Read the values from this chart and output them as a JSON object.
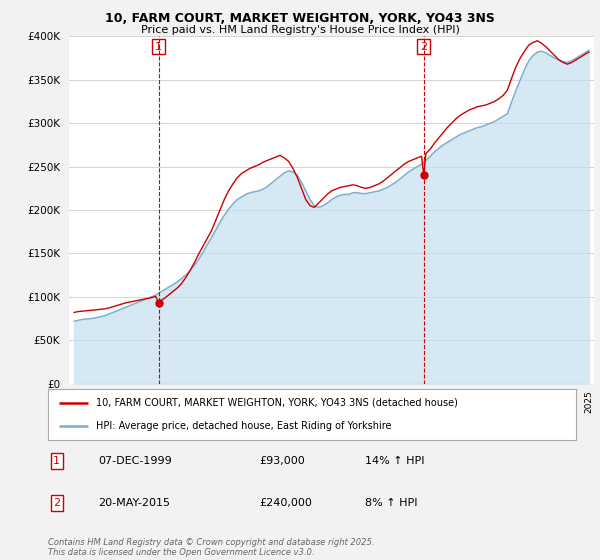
{
  "title": "10, FARM COURT, MARKET WEIGHTON, YORK, YO43 3NS",
  "subtitle": "Price paid vs. HM Land Registry's House Price Index (HPI)",
  "red_label": "10, FARM COURT, MARKET WEIGHTON, YORK, YO43 3NS (detached house)",
  "blue_label": "HPI: Average price, detached house, East Riding of Yorkshire",
  "transaction1": {
    "num": "1",
    "date": "07-DEC-1999",
    "price": 93000,
    "hpi": "14% ↑ HPI"
  },
  "transaction2": {
    "num": "2",
    "date": "20-MAY-2015",
    "price": 240000,
    "hpi": "8% ↑ HPI"
  },
  "vline1_year": 1999.92,
  "vline2_year": 2015.38,
  "footer": "Contains HM Land Registry data © Crown copyright and database right 2025.\nThis data is licensed under the Open Government Licence v3.0.",
  "ylim": [
    0,
    400000
  ],
  "yticks": [
    0,
    50000,
    100000,
    150000,
    200000,
    250000,
    300000,
    350000,
    400000
  ],
  "xlim_left": 1994.7,
  "xlim_right": 2025.3,
  "background_color": "#f2f2f2",
  "plot_background": "#ffffff",
  "grid_color": "#cccccc",
  "red_color": "#cc0000",
  "blue_color": "#7aadcc",
  "blue_fill_color": "#c5dff0",
  "hpi_years": [
    1995.0,
    1995.25,
    1995.5,
    1995.75,
    1996.0,
    1996.25,
    1996.5,
    1996.75,
    1997.0,
    1997.25,
    1997.5,
    1997.75,
    1998.0,
    1998.25,
    1998.5,
    1998.75,
    1999.0,
    1999.25,
    1999.5,
    1999.75,
    2000.0,
    2000.25,
    2000.5,
    2000.75,
    2001.0,
    2001.25,
    2001.5,
    2001.75,
    2002.0,
    2002.25,
    2002.5,
    2002.75,
    2003.0,
    2003.25,
    2003.5,
    2003.75,
    2004.0,
    2004.25,
    2004.5,
    2004.75,
    2005.0,
    2005.25,
    2005.5,
    2005.75,
    2006.0,
    2006.25,
    2006.5,
    2006.75,
    2007.0,
    2007.25,
    2007.5,
    2007.75,
    2008.0,
    2008.25,
    2008.5,
    2008.75,
    2009.0,
    2009.25,
    2009.5,
    2009.75,
    2010.0,
    2010.25,
    2010.5,
    2010.75,
    2011.0,
    2011.25,
    2011.5,
    2011.75,
    2012.0,
    2012.25,
    2012.5,
    2012.75,
    2013.0,
    2013.25,
    2013.5,
    2013.75,
    2014.0,
    2014.25,
    2014.5,
    2014.75,
    2015.0,
    2015.25,
    2015.5,
    2015.75,
    2016.0,
    2016.25,
    2016.5,
    2016.75,
    2017.0,
    2017.25,
    2017.5,
    2017.75,
    2018.0,
    2018.25,
    2018.5,
    2018.75,
    2019.0,
    2019.25,
    2019.5,
    2019.75,
    2020.0,
    2020.25,
    2020.5,
    2020.75,
    2021.0,
    2021.25,
    2021.5,
    2021.75,
    2022.0,
    2022.25,
    2022.5,
    2022.75,
    2023.0,
    2023.25,
    2023.5,
    2023.75,
    2024.0,
    2024.25,
    2024.5,
    2024.75,
    2025.0
  ],
  "hpi_values": [
    72000,
    73000,
    74000,
    74500,
    75000,
    76000,
    77000,
    78000,
    80000,
    82000,
    84000,
    86000,
    88000,
    90000,
    92000,
    94000,
    96000,
    98000,
    100000,
    102000,
    105000,
    108000,
    111000,
    114000,
    117000,
    121000,
    125000,
    130000,
    136000,
    143000,
    151000,
    160000,
    168000,
    177000,
    186000,
    194000,
    201000,
    207000,
    212000,
    215000,
    218000,
    220000,
    221000,
    222000,
    224000,
    227000,
    231000,
    235000,
    239000,
    243000,
    245000,
    244000,
    240000,
    232000,
    222000,
    212000,
    205000,
    203000,
    205000,
    208000,
    212000,
    215000,
    217000,
    218000,
    218000,
    220000,
    220000,
    219000,
    219000,
    220000,
    221000,
    222000,
    224000,
    226000,
    229000,
    232000,
    236000,
    240000,
    244000,
    247000,
    250000,
    253000,
    257000,
    262000,
    267000,
    271000,
    275000,
    278000,
    281000,
    284000,
    287000,
    289000,
    291000,
    293000,
    295000,
    296000,
    298000,
    300000,
    302000,
    305000,
    308000,
    311000,
    325000,
    338000,
    350000,
    362000,
    372000,
    378000,
    382000,
    383000,
    381000,
    378000,
    375000,
    373000,
    371000,
    370000,
    372000,
    375000,
    378000,
    381000,
    384000
  ],
  "red_years": [
    1995.0,
    1995.25,
    1995.5,
    1995.75,
    1996.0,
    1996.25,
    1996.5,
    1996.75,
    1997.0,
    1997.25,
    1997.5,
    1997.75,
    1998.0,
    1998.25,
    1998.5,
    1998.75,
    1999.0,
    1999.25,
    1999.5,
    1999.75,
    1999.92,
    2000.0,
    2000.25,
    2000.5,
    2000.75,
    2001.0,
    2001.25,
    2001.5,
    2001.75,
    2002.0,
    2002.25,
    2002.5,
    2002.75,
    2003.0,
    2003.25,
    2003.5,
    2003.75,
    2004.0,
    2004.25,
    2004.5,
    2004.75,
    2005.0,
    2005.25,
    2005.5,
    2005.75,
    2006.0,
    2006.25,
    2006.5,
    2006.75,
    2007.0,
    2007.25,
    2007.5,
    2007.75,
    2008.0,
    2008.25,
    2008.5,
    2008.75,
    2009.0,
    2009.25,
    2009.5,
    2009.75,
    2010.0,
    2010.25,
    2010.5,
    2010.75,
    2011.0,
    2011.25,
    2011.5,
    2011.75,
    2012.0,
    2012.25,
    2012.5,
    2012.75,
    2013.0,
    2013.25,
    2013.5,
    2013.75,
    2014.0,
    2014.25,
    2014.5,
    2014.75,
    2015.0,
    2015.25,
    2015.38,
    2015.5,
    2015.75,
    2016.0,
    2016.25,
    2016.5,
    2016.75,
    2017.0,
    2017.25,
    2017.5,
    2017.75,
    2018.0,
    2018.25,
    2018.5,
    2018.75,
    2019.0,
    2019.25,
    2019.5,
    2019.75,
    2020.0,
    2020.25,
    2020.5,
    2020.75,
    2021.0,
    2021.25,
    2021.5,
    2021.75,
    2022.0,
    2022.25,
    2022.5,
    2022.75,
    2023.0,
    2023.25,
    2023.5,
    2023.75,
    2024.0,
    2024.25,
    2024.5,
    2024.75,
    2025.0
  ],
  "red_values": [
    82000,
    83000,
    83500,
    84000,
    84500,
    85000,
    85500,
    86000,
    87000,
    88500,
    90000,
    91500,
    93000,
    94000,
    95000,
    96000,
    97000,
    98000,
    99000,
    100500,
    93000,
    95000,
    98000,
    102000,
    106000,
    110000,
    115000,
    122000,
    130000,
    139000,
    149000,
    158000,
    167000,
    176000,
    188000,
    200000,
    212000,
    222000,
    230000,
    237000,
    242000,
    245000,
    248000,
    250000,
    252000,
    255000,
    257000,
    259000,
    261000,
    263000,
    260000,
    256000,
    248000,
    238000,
    225000,
    212000,
    205000,
    203000,
    208000,
    213000,
    218000,
    222000,
    224000,
    226000,
    227000,
    228000,
    229000,
    228000,
    226000,
    225000,
    226000,
    228000,
    230000,
    233000,
    237000,
    241000,
    245000,
    249000,
    253000,
    256000,
    258000,
    260000,
    262000,
    240000,
    265000,
    270000,
    277000,
    283000,
    289000,
    295000,
    300000,
    305000,
    309000,
    312000,
    315000,
    317000,
    319000,
    320000,
    321000,
    323000,
    325000,
    328000,
    332000,
    338000,
    352000,
    365000,
    375000,
    383000,
    390000,
    393000,
    395000,
    392000,
    388000,
    383000,
    378000,
    373000,
    370000,
    368000,
    370000,
    373000,
    376000,
    379000,
    382000
  ]
}
